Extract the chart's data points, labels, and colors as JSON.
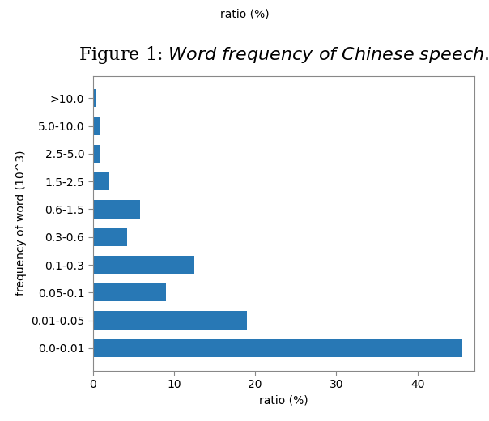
{
  "categories": [
    "0.0-0.01",
    "0.01-0.05",
    "0.05-0.1",
    "0.1-0.3",
    "0.3-0.6",
    "0.6-1.5",
    "1.5-2.5",
    "2.5-5.0",
    "5.0-10.0",
    ">10.0"
  ],
  "values": [
    45.5,
    19.0,
    9.0,
    12.5,
    4.2,
    5.8,
    2.0,
    0.9,
    0.9,
    0.4
  ],
  "bar_color": "#2878b5",
  "title_prefix": "Figure 1: ",
  "title_italic": "Word frequency of Chinese speech.",
  "xlabel": "ratio (%)",
  "ylabel": "frequency of word (10^3)",
  "xlim": [
    0,
    47
  ],
  "xticks": [
    0,
    10,
    20,
    30,
    40
  ],
  "figsize": [
    6.04,
    5.2
  ],
  "dpi": 100,
  "suptitle": "ratio (%)",
  "title_fontsize": 16,
  "tick_fontsize": 10,
  "label_fontsize": 10
}
